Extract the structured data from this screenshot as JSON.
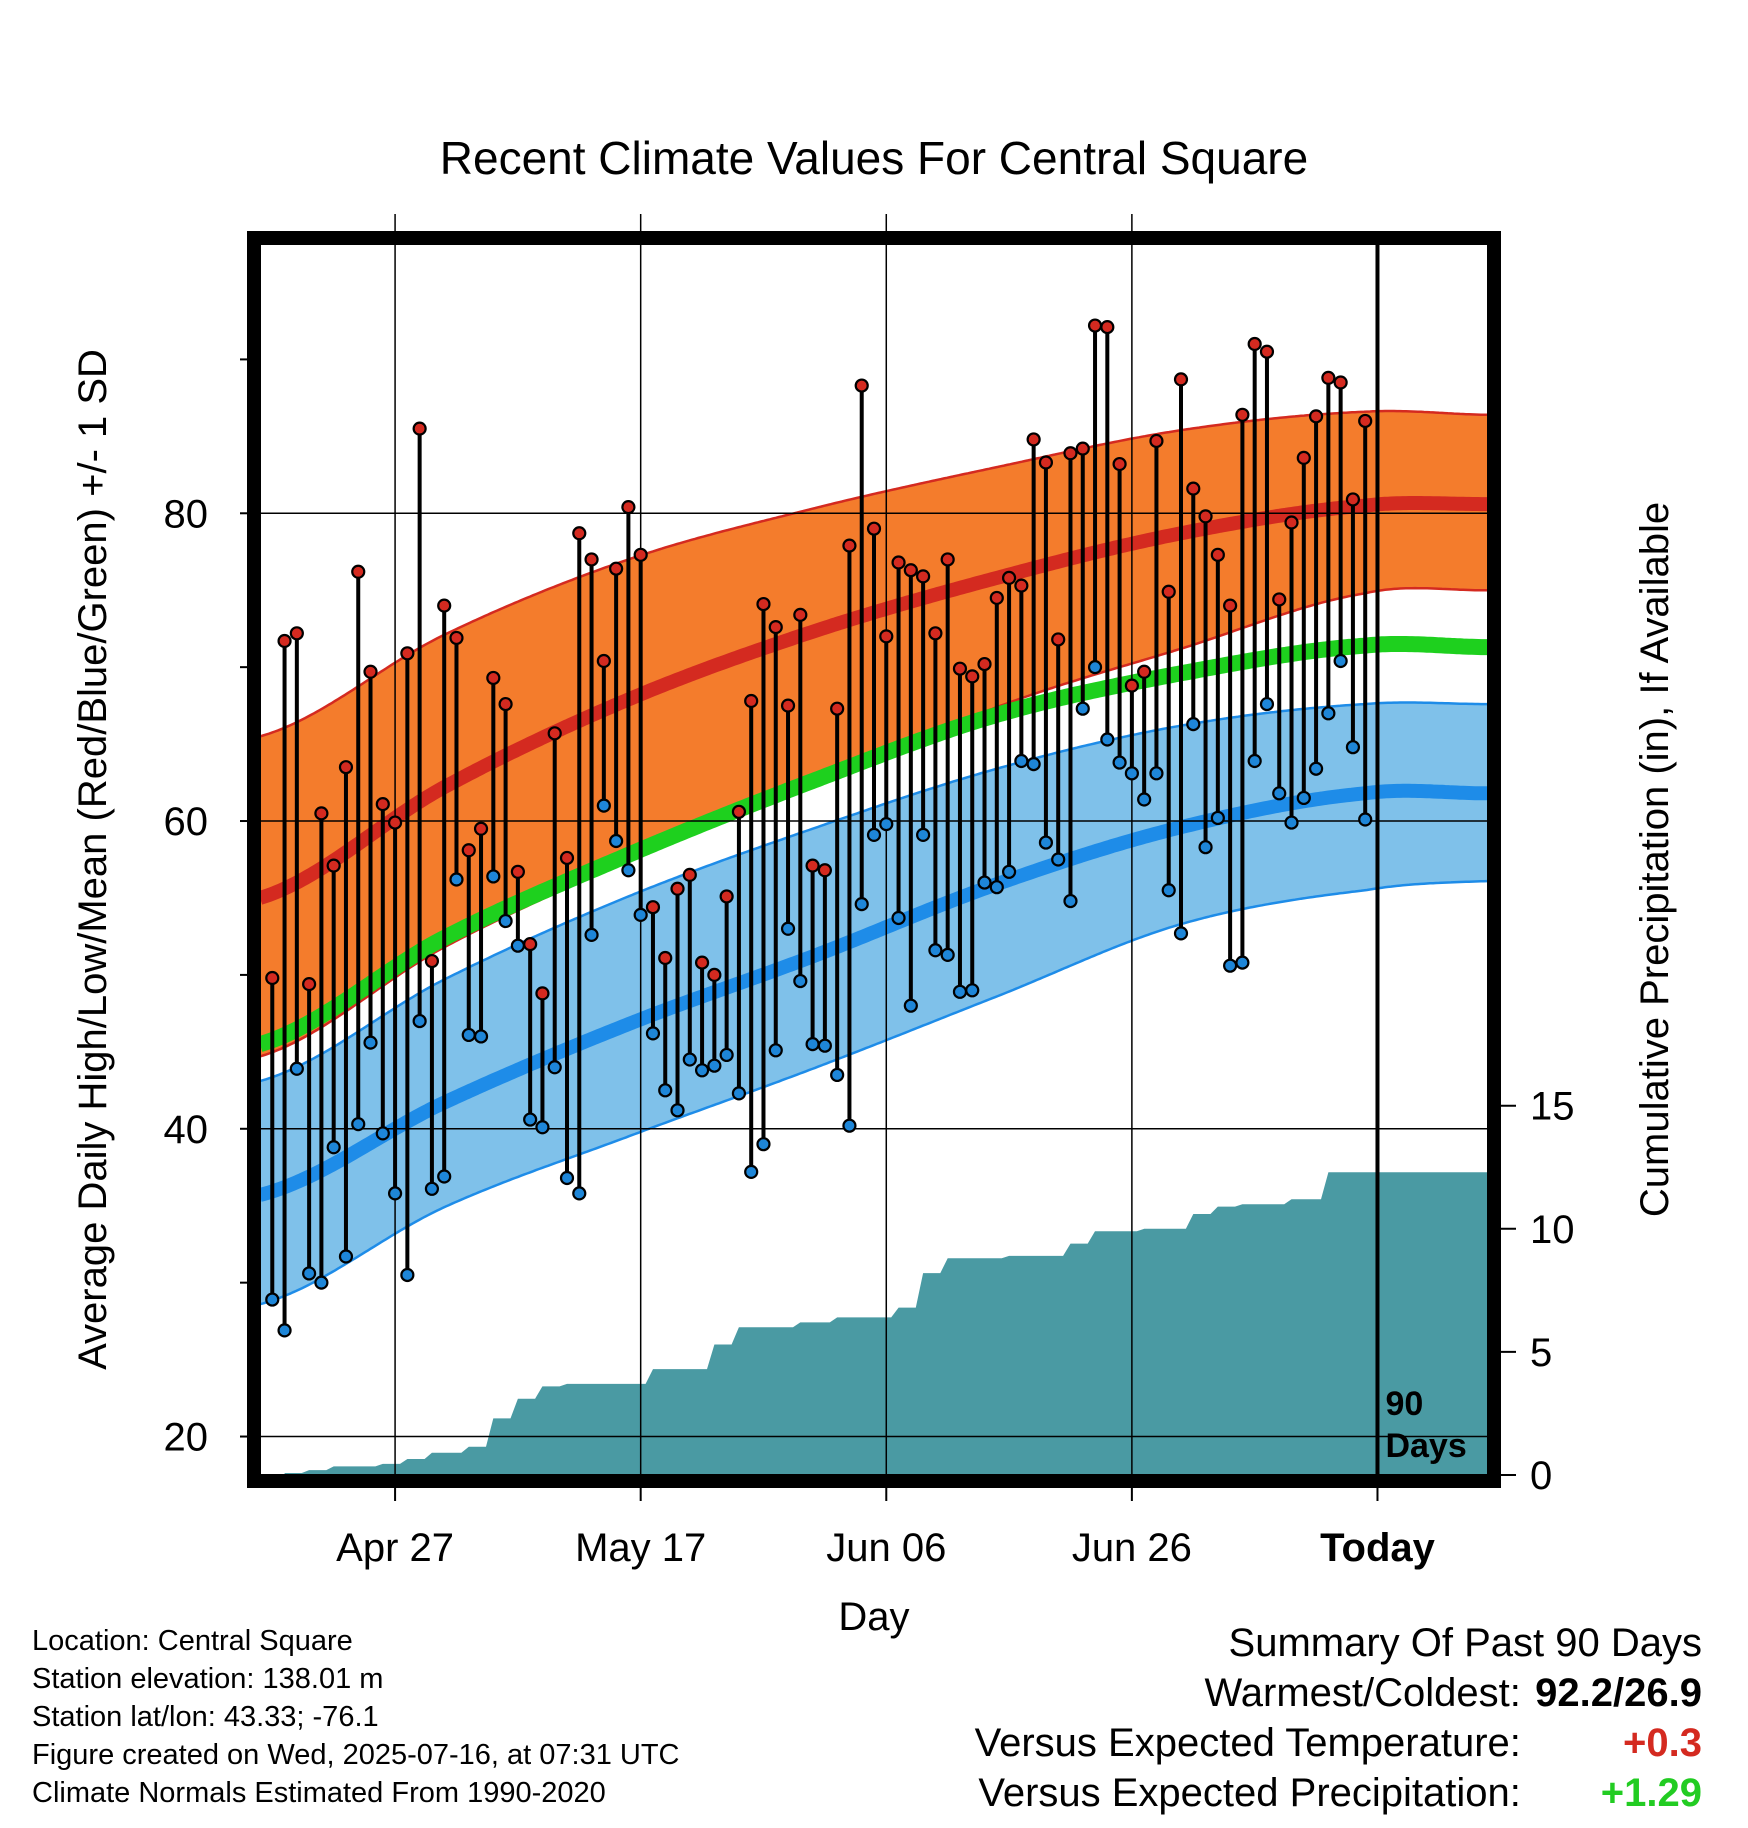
{
  "chart_data": {
    "type": "line",
    "title": "Recent Climate Values For Central Square",
    "xlabel": "Day",
    "ylabel": "Average Daily High/Low/Mean (Red/Blue/Green) +/- 1 SD",
    "y2label": "Cumulative Precipitation (in), If Available",
    "ylim": [
      17.5,
      97.5
    ],
    "y2lim": [
      0,
      50
    ],
    "y_ticks": [
      20,
      40,
      60,
      80
    ],
    "y2_ticks": [
      0,
      5,
      10,
      15
    ],
    "x_range": [
      "2025-04-16",
      "2025-07-25"
    ],
    "x_ticks": [
      {
        "date": "2025-04-27",
        "label": "Apr 27"
      },
      {
        "date": "2025-05-17",
        "label": "May 17"
      },
      {
        "date": "2025-06-06",
        "label": "Jun 06"
      },
      {
        "date": "2025-06-26",
        "label": "Jun 26"
      },
      {
        "date": "2025-07-16",
        "label": "Today"
      }
    ],
    "today_marker": {
      "date": "2025-07-16",
      "label": "90 Days"
    },
    "grid": true,
    "colors": {
      "high_band": "#f47c2c",
      "high_line": "#d42a20",
      "low_band": "#7fc1ea",
      "low_line": "#1e8ce8",
      "mean_line": "#1ed01e",
      "precip": "#4a9aa3",
      "high_point": "#d42a20",
      "low_point": "#1e86d8"
    },
    "normals": {
      "dates": [
        "2025-04-16",
        "2025-05-01",
        "2025-05-16",
        "2025-05-31",
        "2025-06-15",
        "2025-06-30",
        "2025-07-15",
        "2025-07-25"
      ],
      "high_mean": [
        55.0,
        62.2,
        67.9,
        72.3,
        75.8,
        78.7,
        80.5,
        80.6
      ],
      "high_plus_sd": [
        65.5,
        72.1,
        77.0,
        80.3,
        83.0,
        85.4,
        86.6,
        86.4
      ],
      "high_minus_sd": [
        44.7,
        51.8,
        57.4,
        62.2,
        67.4,
        71.2,
        74.8,
        75.0
      ],
      "mean": [
        45.5,
        52.4,
        57.8,
        62.6,
        66.9,
        69.6,
        71.4,
        71.3
      ],
      "low_mean": [
        35.7,
        41.7,
        46.8,
        51.2,
        55.9,
        59.6,
        61.8,
        61.8
      ],
      "low_plus_sd": [
        43.1,
        49.7,
        55.1,
        59.5,
        63.4,
        66.2,
        67.6,
        67.6
      ],
      "low_minus_sd": [
        28.6,
        34.9,
        39.5,
        43.9,
        48.6,
        53.3,
        55.5,
        56.1
      ]
    },
    "daily": {
      "start": "2025-04-17",
      "highs": [
        49.8,
        71.7,
        72.2,
        49.4,
        60.5,
        57.1,
        63.5,
        76.2,
        69.7,
        61.1,
        59.9,
        70.9,
        85.5,
        50.9,
        74.0,
        71.9,
        58.1,
        59.5,
        69.3,
        67.6,
        56.7,
        52.0,
        48.8,
        65.7,
        57.6,
        78.7,
        77.0,
        70.4,
        76.4,
        80.4,
        77.3,
        54.4,
        51.1,
        55.6,
        56.5,
        50.8,
        50.0,
        55.1,
        60.6,
        67.8,
        74.1,
        72.6,
        67.5,
        73.4,
        57.1,
        56.8,
        67.3,
        77.9,
        88.3,
        79.0,
        72.0,
        76.8,
        76.3,
        75.9,
        72.2,
        77.0,
        69.9,
        69.4,
        70.2,
        74.5,
        75.8,
        75.3,
        84.8,
        83.3,
        71.8,
        83.9,
        84.2,
        92.2,
        92.1,
        83.2,
        68.8,
        69.7,
        84.7,
        74.9,
        88.7,
        81.6,
        79.8,
        77.3,
        74.0,
        86.4,
        91.0,
        90.5,
        74.4,
        79.4,
        83.6,
        86.3,
        88.8,
        88.5,
        80.9,
        86.0
      ],
      "lows": [
        28.9,
        26.9,
        43.9,
        30.6,
        30.0,
        38.8,
        31.7,
        40.3,
        45.6,
        39.7,
        35.8,
        30.5,
        47.0,
        36.1,
        36.9,
        56.2,
        46.1,
        46.0,
        56.4,
        53.5,
        51.9,
        40.6,
        40.1,
        44.0,
        36.8,
        35.8,
        52.6,
        61.0,
        58.7,
        56.8,
        53.9,
        46.2,
        42.5,
        41.2,
        44.5,
        43.8,
        44.1,
        44.8,
        42.3,
        37.2,
        39.0,
        45.1,
        53.0,
        49.6,
        45.5,
        45.4,
        43.5,
        40.2,
        54.6,
        59.1,
        59.8,
        53.7,
        48.0,
        59.1,
        51.6,
        51.3,
        48.9,
        49.0,
        56.0,
        55.7,
        56.7,
        63.9,
        63.7,
        58.6,
        57.5,
        54.8,
        67.3,
        70.0,
        65.3,
        63.8,
        63.1,
        61.4,
        63.1,
        55.5,
        52.7,
        66.3,
        58.3,
        60.2,
        50.6,
        50.8,
        63.9,
        67.6,
        61.8,
        59.9,
        61.5,
        63.4,
        67.0,
        70.4,
        64.8,
        60.1
      ]
    },
    "precipitation": {
      "dates": [
        "2025-04-18",
        "2025-04-20",
        "2025-04-22",
        "2025-04-26",
        "2025-04-28",
        "2025-04-30",
        "2025-05-03",
        "2025-05-05",
        "2025-05-07",
        "2025-05-09",
        "2025-05-11",
        "2025-05-16",
        "2025-05-18",
        "2025-05-21",
        "2025-05-23",
        "2025-05-25",
        "2025-05-30",
        "2025-06-02",
        "2025-06-05",
        "2025-06-07",
        "2025-06-09",
        "2025-06-11",
        "2025-06-16",
        "2025-06-21",
        "2025-06-23",
        "2025-06-27",
        "2025-07-01",
        "2025-07-03",
        "2025-07-05",
        "2025-07-09",
        "2025-07-12",
        "2025-07-25"
      ],
      "cumulative": [
        0.08,
        0.2,
        0.35,
        0.45,
        0.65,
        0.9,
        1.15,
        2.3,
        3.1,
        3.6,
        3.7,
        3.7,
        4.3,
        4.3,
        5.3,
        6.0,
        6.2,
        6.4,
        6.4,
        6.8,
        8.2,
        8.8,
        8.9,
        9.4,
        9.9,
        10.0,
        10.6,
        10.9,
        11.0,
        11.2,
        12.3,
        12.3
      ]
    }
  },
  "info": {
    "location": "Location: Central Square",
    "elevation": "Station elevation: 138.01 m",
    "latlon": "Station lat/lon: 43.33; -76.1",
    "created": "Figure created on Wed, 2025-07-16, at 07:31 UTC",
    "normals": "Climate Normals Estimated From 1990-2020"
  },
  "summary": {
    "title": "Summary Of Past 90 Days",
    "warmest_label": "Warmest/Coldest:",
    "warmest_value": "92.2/26.9",
    "temp_label": "Versus Expected Temperature:",
    "temp_value": "+0.3",
    "temp_color": "#d42a20",
    "precip_label": "Versus Expected Precipitation:",
    "precip_value": "+1.29",
    "precip_color": "#22cc22"
  }
}
